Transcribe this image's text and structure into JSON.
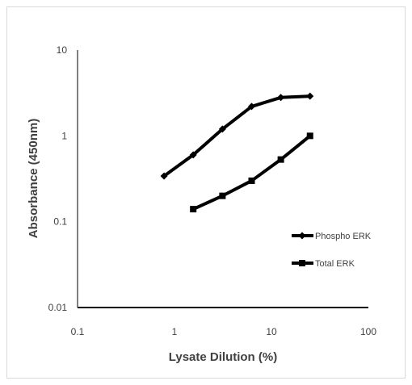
{
  "chart_data": {
    "type": "line",
    "title": "",
    "xlabel": "Lysate Dilution (%)",
    "ylabel": "Absorbance (450nm)",
    "x_scale": "log",
    "y_scale": "log",
    "xlim": [
      0.1,
      100
    ],
    "ylim": [
      0.01,
      10
    ],
    "x_ticks": [
      "0.1",
      "1",
      "10",
      "100"
    ],
    "y_ticks": [
      "0.01",
      "0.1",
      "1",
      "10"
    ],
    "grid": false,
    "legend_position": "right",
    "series": [
      {
        "name": "Phospho ERK",
        "marker": "diamond",
        "color": "#000000",
        "x": [
          0.78,
          1.56,
          3.125,
          6.25,
          12.5,
          25
        ],
        "y": [
          0.34,
          0.6,
          1.2,
          2.2,
          2.8,
          2.9
        ]
      },
      {
        "name": "Total ERK",
        "marker": "square",
        "color": "#000000",
        "x": [
          1.56,
          3.125,
          6.25,
          12.5,
          25
        ],
        "y": [
          0.14,
          0.2,
          0.3,
          0.53,
          1.0
        ]
      }
    ]
  }
}
